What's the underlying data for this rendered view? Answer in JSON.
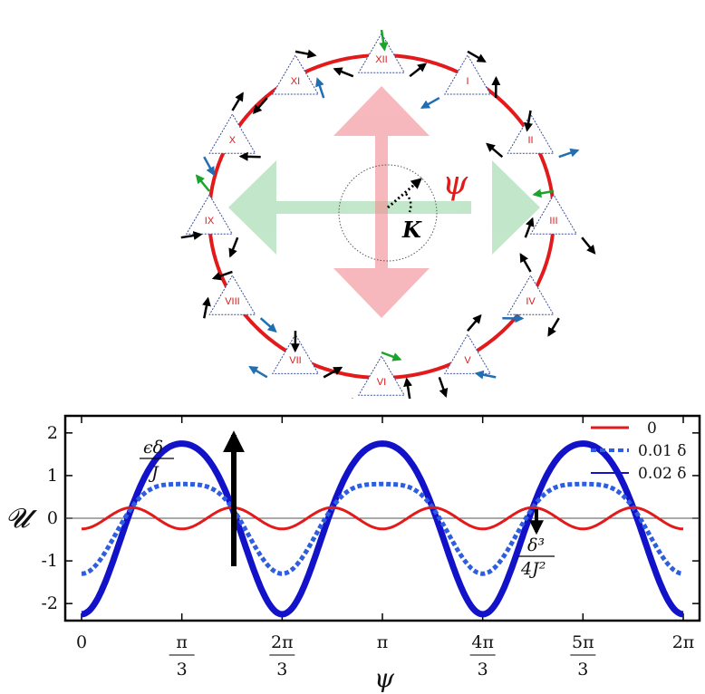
{
  "diagram": {
    "triangles": [
      "I",
      "II",
      "III",
      "IV",
      "V",
      "VI",
      "VII",
      "VIII",
      "IX",
      "X",
      "XI",
      "XII"
    ],
    "angle_symbol": "ψ",
    "center_symbol": "K",
    "colors": {
      "ring": "#e31a1c",
      "vertical_arrow": "#f4a3a8",
      "horizontal_arrow": "#a8dcb5",
      "triangle_edge": "#3b4f9b",
      "spin_black": "#000000",
      "spin_blue": "#1f6fb2",
      "spin_green": "#1aa52a"
    }
  },
  "chart_data": {
    "type": "line",
    "xlabel": "ψ",
    "ylabel": "𝓤",
    "xlim": [
      0,
      6.2832
    ],
    "ylim": [
      -2.4,
      2.4
    ],
    "xticks": [
      {
        "num": "0",
        "den": ""
      },
      {
        "num": "π",
        "den": "3"
      },
      {
        "num": "2π",
        "den": "3"
      },
      {
        "num": "π",
        "den": ""
      },
      {
        "num": "4π",
        "den": "3"
      },
      {
        "num": "5π",
        "den": "3"
      },
      {
        "num": "2π",
        "den": ""
      }
    ],
    "yticks": [
      "-2",
      "-1",
      "0",
      "1",
      "2"
    ],
    "series": [
      {
        "name": "0",
        "color": "#e31a1c",
        "style": "solid",
        "amp6": 0.25,
        "amp3": 0.0
      },
      {
        "name": "0.01 δ",
        "color": "#2f5de0",
        "style": "dashed",
        "amp6": 0.25,
        "amp3": 1.05
      },
      {
        "name": "0.02 δ",
        "color": "#1212c8",
        "style": "thick",
        "amp6": 0.25,
        "amp3": 2.0
      }
    ],
    "legend_position": "top-right",
    "annotations": {
      "up_arrow_num": "ϵδ",
      "up_arrow_den": "J",
      "down_arrow_num": "δ³",
      "down_arrow_den": "4J²"
    }
  }
}
